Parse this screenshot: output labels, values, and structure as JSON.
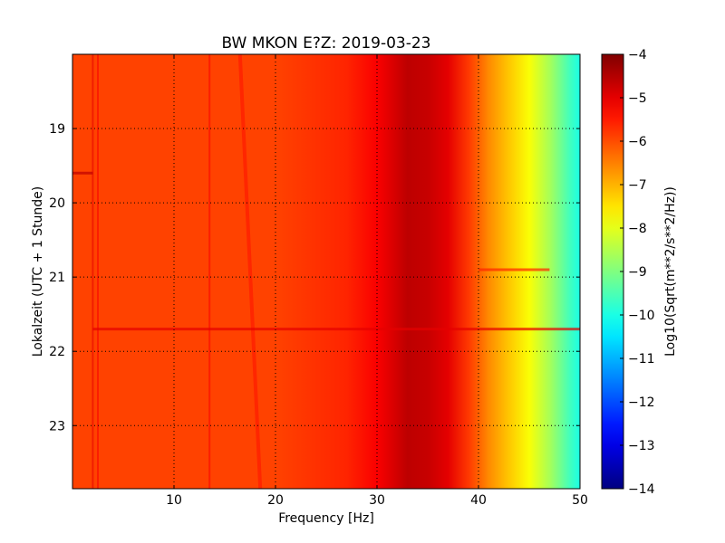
{
  "chart_data": {
    "type": "heatmap",
    "title": "BW MKON E?Z: 2019-03-23",
    "xlabel": "Frequency [Hz]",
    "ylabel": "Lokalzeit (UTC + 1 Stunde)",
    "colorbar_label": "Log10(Sqrt(m**2/s**2/Hz))",
    "colormap": "jet",
    "xlim": [
      0,
      50
    ],
    "ylim_hours": [
      18.0,
      23.85
    ],
    "x_ticks": [
      10,
      20,
      30,
      40,
      50
    ],
    "x_tick_labels": [
      "10",
      "20",
      "30",
      "40",
      "50"
    ],
    "y_ticks": [
      19,
      20,
      21,
      22,
      23
    ],
    "y_tick_labels": [
      "19",
      "20",
      "21",
      "22",
      "23"
    ],
    "colorbar_range": [
      -14,
      -4
    ],
    "colorbar_ticks": [
      -4,
      -5,
      -6,
      -7,
      -8,
      -9,
      -10,
      -11,
      -12,
      -13,
      -14
    ],
    "colorbar_tick_labels": [
      "−4",
      "−5",
      "−6",
      "−7",
      "−8",
      "−9",
      "−10",
      "−11",
      "−12",
      "−13",
      "−14"
    ],
    "grid": true,
    "spectral_profile": [
      {
        "freq": 0,
        "value": -5.9
      },
      {
        "freq": 10,
        "value": -5.9
      },
      {
        "freq": 20,
        "value": -5.9
      },
      {
        "freq": 27,
        "value": -5.6
      },
      {
        "freq": 30,
        "value": -5.2
      },
      {
        "freq": 33,
        "value": -4.6
      },
      {
        "freq": 35,
        "value": -4.7
      },
      {
        "freq": 37,
        "value": -5.0
      },
      {
        "freq": 39,
        "value": -5.8
      },
      {
        "freq": 41,
        "value": -6.6
      },
      {
        "freq": 43,
        "value": -7.2
      },
      {
        "freq": 45,
        "value": -7.8
      },
      {
        "freq": 47,
        "value": -8.6
      },
      {
        "freq": 49,
        "value": -9.6
      },
      {
        "freq": 50,
        "value": -10.0
      }
    ],
    "features": [
      {
        "kind": "vertical_line",
        "freq": 2.0,
        "value": -5.0
      },
      {
        "kind": "vertical_line",
        "freq": 2.5,
        "value": -5.2
      },
      {
        "kind": "vertical_line",
        "freq": 13.5,
        "value": -5.2
      },
      {
        "kind": "diagonal_band",
        "freq_start": 16.5,
        "freq_end": 18.5,
        "value": -5.3
      },
      {
        "kind": "horizontal_band",
        "time_hours": 21.7,
        "freq_start": 2,
        "freq_end": 50,
        "value": -5.0
      },
      {
        "kind": "horizontal_band",
        "time_hours": 19.6,
        "freq_start": 0,
        "freq_end": 2,
        "value": -4.6
      },
      {
        "kind": "horizontal_band",
        "time_hours": 20.9,
        "freq_start": 40,
        "freq_end": 47,
        "value": -5.6
      }
    ]
  }
}
